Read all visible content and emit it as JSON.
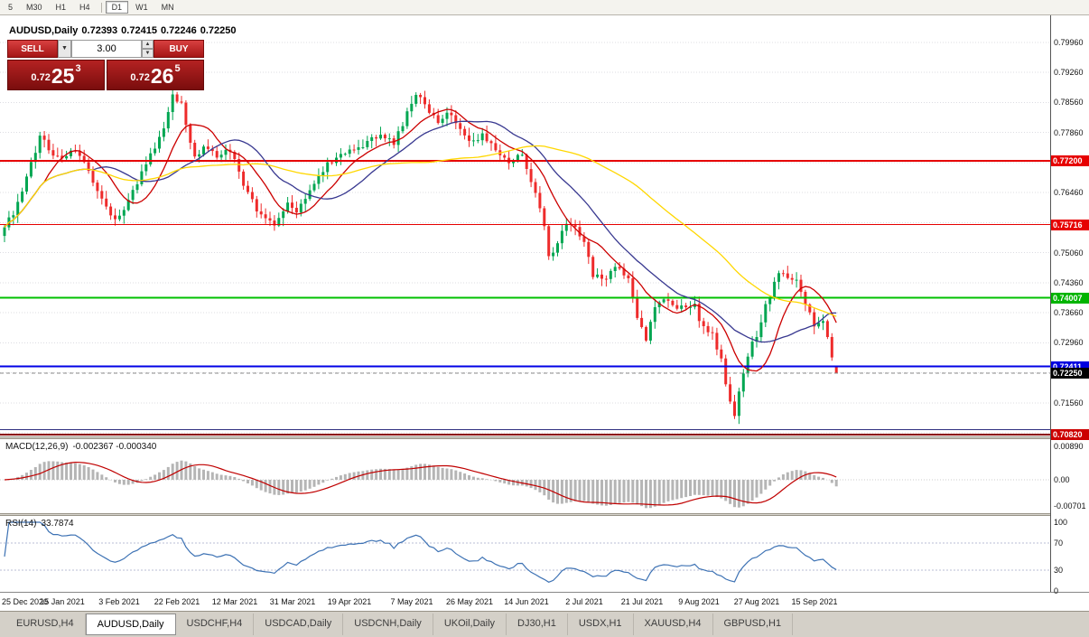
{
  "toolbar": {
    "timeframes": [
      {
        "label": "5"
      },
      {
        "label": "M30"
      },
      {
        "label": "H1"
      },
      {
        "label": "H4"
      },
      {
        "separator": true
      },
      {
        "label": "D1",
        "active": true
      },
      {
        "label": "W1"
      },
      {
        "label": "MN"
      }
    ]
  },
  "chart": {
    "symbol_label": "AUDUSD,Daily",
    "ohlc": {
      "open": "0.72393",
      "high": "0.72415",
      "low": "0.72246",
      "close": "0.72250"
    },
    "trade_panel": {
      "sell_label": "SELL",
      "buy_label": "BUY",
      "volume": "3.00",
      "sell_price": {
        "prefix": "0.72",
        "big": "25",
        "sup": "3"
      },
      "buy_price": {
        "prefix": "0.72",
        "big": "26",
        "sup": "5"
      }
    }
  },
  "macd": {
    "label": "MACD(12,26,9)",
    "values": "-0.002367 -0.000340",
    "axis_labels": [
      "0.00890",
      "0.00",
      "-0.00701"
    ],
    "axis_values": [
      0.0089,
      0,
      -0.00701
    ]
  },
  "rsi": {
    "label": "RSI(14)",
    "value": "33.7874",
    "axis_labels": [
      "100",
      "70",
      "30",
      "0"
    ],
    "axis_values": [
      100,
      70,
      30,
      0
    ],
    "level_lines": [
      70,
      30
    ]
  },
  "tabs": [
    "EURUSD,H4",
    "AUDUSD,Daily",
    "USDCHF,H4",
    "USDCAD,Daily",
    "USDCNH,Daily",
    "UKOil,Daily",
    "DJ30,H1",
    "USDX,H1",
    "XAUUSD,H4",
    "GBPUSD,H1"
  ],
  "active_tab": "AUDUSD,Daily",
  "chart_data": {
    "type": "candlestick",
    "symbol": "AUDUSD",
    "timeframe": "Daily",
    "current_bar": {
      "open": 0.72393,
      "high": 0.72415,
      "low": 0.72246,
      "close": 0.7225
    },
    "bar_count": 189,
    "y_range": [
      0.7078,
      0.8059
    ],
    "y_axis_ticks": [
      {
        "value": 0.7996,
        "label": "0.79960"
      },
      {
        "value": 0.7926,
        "label": "0.79260"
      },
      {
        "value": 0.7856,
        "label": "0.78560"
      },
      {
        "value": 0.7786,
        "label": "0.77860"
      },
      {
        "value": 0.7646,
        "label": "0.76460"
      },
      {
        "value": 0.7506,
        "label": "0.75060"
      },
      {
        "value": 0.7436,
        "label": "0.74360"
      },
      {
        "value": 0.7366,
        "label": "0.73660"
      },
      {
        "value": 0.7296,
        "label": "0.72960"
      },
      {
        "value": 0.7156,
        "label": "0.71560"
      }
    ],
    "grid_prices": [
      0.7996,
      0.7926,
      0.7856,
      0.7786,
      0.7716,
      0.7646,
      0.7576,
      0.7506,
      0.7436,
      0.7366,
      0.7296,
      0.7226,
      0.7156,
      0.7086
    ],
    "levels": [
      {
        "value": 0.772,
        "label": "0.77200",
        "color": "#e60000",
        "badge": "#e60000",
        "width": 2
      },
      {
        "value": 0.75716,
        "label": "0.75716",
        "color": "#e60000",
        "badge": "#e60000",
        "width": 1
      },
      {
        "value": 0.74007,
        "label": "0.74007",
        "color": "#00c000",
        "badge": "#00b400",
        "width": 2
      },
      {
        "value": 0.72411,
        "label": "0.72411",
        "color": "#0000e6",
        "badge": "#0000e0",
        "width": 2
      },
      {
        "value": 0.7094,
        "label": "",
        "color": "#303080",
        "badge": "",
        "width": 1
      },
      {
        "value": 0.7082,
        "label": "0.70820",
        "color": "#8b0000",
        "badge": "#cc0000",
        "width": 2
      }
    ],
    "current_price": {
      "value": 0.7225,
      "label": "0.72250",
      "badge_color": "#000000"
    },
    "candle_colors": {
      "bull": "#00a651",
      "bear": "#ee2b2b"
    },
    "moving_averages": [
      {
        "period": 10,
        "color": "#cc0000"
      },
      {
        "period": 21,
        "color": "#383890"
      },
      {
        "period": 55,
        "color": "#ffd700"
      }
    ],
    "close_path": [
      [
        0,
        0.756
      ],
      [
        4,
        0.7642
      ],
      [
        8,
        0.778
      ],
      [
        11,
        0.7738
      ],
      [
        13,
        0.7722
      ],
      [
        16,
        0.7748
      ],
      [
        19,
        0.77
      ],
      [
        22,
        0.7625
      ],
      [
        25,
        0.7578
      ],
      [
        27,
        0.7608
      ],
      [
        30,
        0.7672
      ],
      [
        33,
        0.773
      ],
      [
        36,
        0.78
      ],
      [
        38,
        0.7872
      ],
      [
        40,
        0.7856
      ],
      [
        41,
        0.7798
      ],
      [
        43,
        0.7725
      ],
      [
        45,
        0.7758
      ],
      [
        48,
        0.7728
      ],
      [
        51,
        0.7748
      ],
      [
        54,
        0.766
      ],
      [
        58,
        0.7592
      ],
      [
        61,
        0.7572
      ],
      [
        64,
        0.7615
      ],
      [
        66,
        0.76
      ],
      [
        69,
        0.7658
      ],
      [
        72,
        0.77
      ],
      [
        75,
        0.7728
      ],
      [
        79,
        0.7748
      ],
      [
        82,
        0.7762
      ],
      [
        85,
        0.7788
      ],
      [
        88,
        0.776
      ],
      [
        91,
        0.7828
      ],
      [
        93,
        0.788
      ],
      [
        95,
        0.7845
      ],
      [
        98,
        0.7812
      ],
      [
        101,
        0.7832
      ],
      [
        105,
        0.7762
      ],
      [
        108,
        0.7782
      ],
      [
        111,
        0.7742
      ],
      [
        114,
        0.7722
      ],
      [
        117,
        0.7738
      ],
      [
        118,
        0.7702
      ],
      [
        120,
        0.7645
      ],
      [
        122,
        0.756
      ],
      [
        123,
        0.7492
      ],
      [
        125,
        0.7532
      ],
      [
        127,
        0.758
      ],
      [
        129,
        0.7562
      ],
      [
        131,
        0.7532
      ],
      [
        133,
        0.7455
      ],
      [
        135,
        0.7442
      ],
      [
        138,
        0.7472
      ],
      [
        141,
        0.7448
      ],
      [
        143,
        0.7352
      ],
      [
        145,
        0.7302
      ],
      [
        147,
        0.7378
      ],
      [
        149,
        0.7395
      ],
      [
        152,
        0.7372
      ],
      [
        156,
        0.7392
      ],
      [
        157,
        0.7342
      ],
      [
        160,
        0.7312
      ],
      [
        162,
        0.7252
      ],
      [
        164,
        0.7162
      ],
      [
        165,
        0.7122
      ],
      [
        167,
        0.7232
      ],
      [
        169,
        0.7292
      ],
      [
        170,
        0.7312
      ],
      [
        172,
        0.738
      ],
      [
        174,
        0.7432
      ],
      [
        175,
        0.7462
      ],
      [
        177,
        0.7442
      ],
      [
        179,
        0.7446
      ],
      [
        181,
        0.7392
      ],
      [
        183,
        0.7332
      ],
      [
        185,
        0.7352
      ],
      [
        186,
        0.7302
      ],
      [
        187,
        0.7262
      ],
      [
        188,
        0.7225
      ]
    ],
    "date_ticks": {
      "bars": [
        0,
        13,
        26,
        39,
        52,
        65,
        78,
        92,
        105,
        118,
        131,
        144,
        157,
        170,
        183
      ],
      "labels": [
        "25 Dec 2020",
        "15 Jan 2021",
        "3 Feb 2021",
        "22 Feb 2021",
        "12 Mar 2021",
        "31 Mar 2021",
        "19 Apr 2021",
        "7 May 2021",
        "26 May 2021",
        "14 Jun 2021",
        "2 Jul 2021",
        "21 Jul 2021",
        "9 Aug 2021",
        "27 Aug 2021",
        "15 Sep 2021"
      ]
    }
  }
}
